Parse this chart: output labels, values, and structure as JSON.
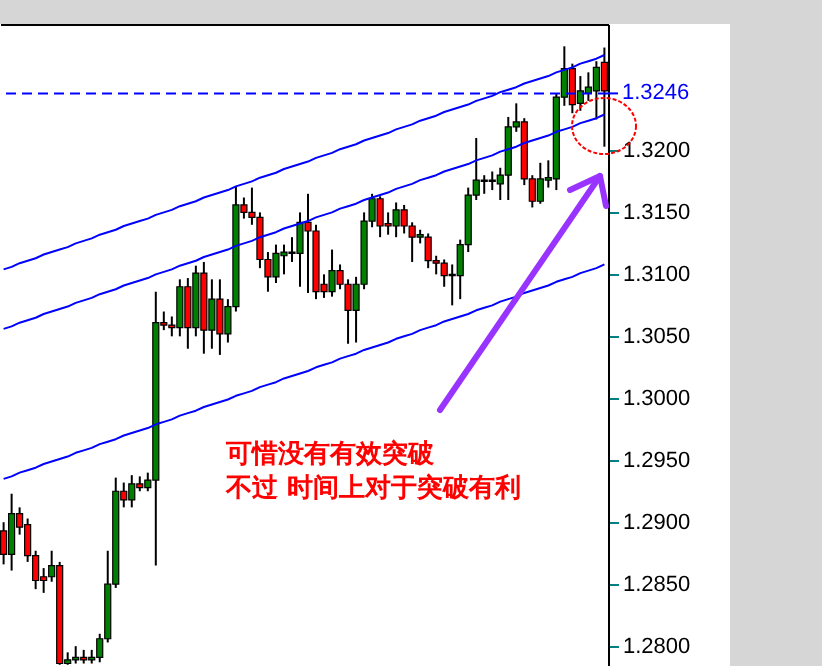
{
  "chart_data": {
    "type": "candlestick",
    "categories": [
      null,
      null,
      null,
      null,
      null,
      null,
      null,
      null,
      null,
      null,
      null,
      null,
      null,
      null,
      null,
      null,
      null,
      null,
      null,
      null,
      null,
      null,
      null,
      null,
      null,
      null,
      null,
      null,
      null,
      null,
      null,
      null,
      null,
      null,
      null,
      null,
      null,
      null,
      null,
      null,
      null,
      null,
      null,
      null,
      null,
      null,
      null,
      null,
      null,
      null,
      null,
      null,
      null,
      null,
      null,
      null,
      null,
      null,
      null,
      null,
      null,
      null,
      null,
      null,
      null,
      null,
      null,
      null,
      null,
      null,
      null,
      null,
      null,
      null,
      null,
      null
    ],
    "ohlc": [
      [
        1.2893,
        1.29,
        1.2866,
        1.2874
      ],
      [
        1.2874,
        1.2923,
        1.2861,
        1.2907
      ],
      [
        1.2907,
        1.2912,
        1.289,
        1.2896
      ],
      [
        1.2898,
        1.2903,
        1.2868,
        1.2873
      ],
      [
        1.2873,
        1.2877,
        1.2846,
        1.2853
      ],
      [
        1.2856,
        1.2863,
        1.2843,
        1.2853
      ],
      [
        1.2856,
        1.2877,
        1.2852,
        1.2865
      ],
      [
        1.2865,
        1.2868,
        1.2785,
        1.2786
      ],
      [
        1.2786,
        1.2795,
        1.2785,
        1.2789
      ],
      [
        1.2789,
        1.28,
        1.2786,
        1.2791
      ],
      [
        1.2791,
        1.2797,
        1.2786,
        1.2789
      ],
      [
        1.2789,
        1.2797,
        1.2786,
        1.2791
      ],
      [
        1.2791,
        1.281,
        1.2787,
        1.2806
      ],
      [
        1.2806,
        1.2877,
        1.2803,
        1.285
      ],
      [
        1.285,
        1.2936,
        1.2847,
        1.2925
      ],
      [
        1.2925,
        1.2932,
        1.2912,
        1.2918
      ],
      [
        1.2918,
        1.2938,
        1.2912,
        1.2931
      ],
      [
        1.2931,
        1.2937,
        1.2925,
        1.2928
      ],
      [
        1.2928,
        1.294,
        1.2925,
        1.2934
      ],
      [
        1.2934,
        1.3086,
        1.2865,
        1.3061
      ],
      [
        1.3061,
        1.307,
        1.3055,
        1.3059
      ],
      [
        1.3059,
        1.3066,
        1.305,
        1.3057
      ],
      [
        1.3057,
        1.3096,
        1.305,
        1.309
      ],
      [
        1.309,
        1.3097,
        1.304,
        1.3057
      ],
      [
        1.3057,
        1.3107,
        1.305,
        1.3101
      ],
      [
        1.3101,
        1.311,
        1.3036,
        1.3055
      ],
      [
        1.3055,
        1.3096,
        1.304,
        1.308
      ],
      [
        1.308,
        1.3096,
        1.3035,
        1.3052
      ],
      [
        1.3052,
        1.308,
        1.3045,
        1.3074
      ],
      [
        1.3074,
        1.3171,
        1.307,
        1.3156
      ],
      [
        1.3156,
        1.3162,
        1.3145,
        1.315
      ],
      [
        1.315,
        1.317,
        1.314,
        1.3146
      ],
      [
        1.3146,
        1.315,
        1.3105,
        1.3112
      ],
      [
        1.3112,
        1.3118,
        1.3086,
        1.3098
      ],
      [
        1.3098,
        1.3124,
        1.3093,
        1.3117
      ],
      [
        1.3115,
        1.3124,
        1.31,
        1.3118
      ],
      [
        1.3118,
        1.313,
        1.311,
        1.3117
      ],
      [
        1.3117,
        1.315,
        1.309,
        1.3142
      ],
      [
        1.3142,
        1.3165,
        1.3085,
        1.3135
      ],
      [
        1.3135,
        1.314,
        1.308,
        1.3086
      ],
      [
        1.3092,
        1.31,
        1.3081,
        1.3086
      ],
      [
        1.3086,
        1.312,
        1.3082,
        1.3103
      ],
      [
        1.3103,
        1.3108,
        1.3088,
        1.3092
      ],
      [
        1.3092,
        1.3096,
        1.3044,
        1.3071
      ],
      [
        1.3071,
        1.3098,
        1.3045,
        1.3092
      ],
      [
        1.3092,
        1.315,
        1.3088,
        1.3143
      ],
      [
        1.3143,
        1.3165,
        1.3138,
        1.3161
      ],
      [
        1.3161,
        1.3163,
        1.313,
        1.3139
      ],
      [
        1.3141,
        1.315,
        1.3132,
        1.3139
      ],
      [
        1.3139,
        1.3158,
        1.313,
        1.3152
      ],
      [
        1.3152,
        1.3156,
        1.3133,
        1.3139
      ],
      [
        1.3139,
        1.3142,
        1.311,
        1.313
      ],
      [
        1.313,
        1.3136,
        1.3125,
        1.3132
      ],
      [
        1.313,
        1.3133,
        1.3105,
        1.3111
      ],
      [
        1.3111,
        1.3115,
        1.31,
        1.3109
      ],
      [
        1.3109,
        1.3112,
        1.309,
        1.3099
      ],
      [
        1.31,
        1.3108,
        1.3075,
        1.3099
      ],
      [
        1.3099,
        1.3128,
        1.308,
        1.3124
      ],
      [
        1.3124,
        1.317,
        1.3118,
        1.3164
      ],
      [
        1.3164,
        1.321,
        1.316,
        1.3176
      ],
      [
        1.3176,
        1.318,
        1.3165,
        1.3175
      ],
      [
        1.3175,
        1.3183,
        1.3168,
        1.3176
      ],
      [
        1.3173,
        1.3186,
        1.316,
        1.318
      ],
      [
        1.318,
        1.3227,
        1.316,
        1.3219
      ],
      [
        1.3219,
        1.3238,
        1.3215,
        1.3223
      ],
      [
        1.3223,
        1.3226,
        1.3172,
        1.3177
      ],
      [
        1.3177,
        1.318,
        1.3154,
        1.3159
      ],
      [
        1.3159,
        1.319,
        1.3157,
        1.3177
      ],
      [
        1.3176,
        1.3192,
        1.317,
        1.3178
      ],
      [
        1.3177,
        1.3246,
        1.3168,
        1.3243
      ],
      [
        1.3243,
        1.3284,
        1.3236,
        1.3266
      ],
      [
        1.3266,
        1.327,
        1.323,
        1.3237
      ],
      [
        1.3238,
        1.326,
        1.3232,
        1.3248
      ],
      [
        1.3246,
        1.3263,
        1.324,
        1.3251
      ],
      [
        1.3248,
        1.3272,
        1.3225,
        1.3267
      ],
      [
        1.3271,
        1.3283,
        1.3203,
        1.3248
      ]
    ],
    "colors": [
      "#ff0000",
      "#008000",
      "#ff0000",
      "#ff0000",
      "#ff0000",
      "#ff0000",
      "#008000",
      "#ff0000",
      "#008000",
      "#008000",
      "#ff0000",
      "#008000",
      "#008000",
      "#008000",
      "#008000",
      "#ff0000",
      "#008000",
      "#ff0000",
      "#008000",
      "#008000",
      "#ff0000",
      "#ff0000",
      "#008000",
      "#ff0000",
      "#008000",
      "#ff0000",
      "#008000",
      "#ff0000",
      "#008000",
      "#008000",
      "#ff0000",
      "#ff0000",
      "#ff0000",
      "#ff0000",
      "#008000",
      "#008000",
      "#ff0000",
      "#008000",
      "#ff0000",
      "#ff0000",
      "#ff0000",
      "#008000",
      "#ff0000",
      "#ff0000",
      "#008000",
      "#008000",
      "#008000",
      "#ff0000",
      "#ff0000",
      "#008000",
      "#ff0000",
      "#ff0000",
      "#008000",
      "#ff0000",
      "#ff0000",
      "#ff0000",
      "#ff0000",
      "#008000",
      "#008000",
      "#008000",
      "#ff0000",
      "#008000",
      "#008000",
      "#008000",
      "#008000",
      "#ff0000",
      "#ff0000",
      "#008000",
      "#008000",
      "#008000",
      "#008000",
      "#ff0000",
      "#008000",
      "#008000",
      "#008000",
      "#ff0000"
    ],
    "series": [
      {
        "type": "line",
        "color": "#0000ff",
        "values": [
          1.3104,
          1.3106,
          1.3109,
          1.3111,
          1.3113,
          1.3116,
          1.3118,
          1.312,
          1.3122,
          1.3125,
          1.3127,
          1.3129,
          1.3132,
          1.3134,
          1.3136,
          1.3139,
          1.3141,
          1.3143,
          1.3145,
          1.3148,
          1.315,
          1.3152,
          1.3155,
          1.3157,
          1.3159,
          1.3162,
          1.3164,
          1.3166,
          1.3168,
          1.3171,
          1.3173,
          1.3175,
          1.3178,
          1.318,
          1.3182,
          1.3185,
          1.3187,
          1.3189,
          1.3191,
          1.3194,
          1.3196,
          1.3198,
          1.3201,
          1.3203,
          1.3205,
          1.3208,
          1.321,
          1.3212,
          1.3214,
          1.3217,
          1.3219,
          1.3221,
          1.3224,
          1.3226,
          1.3228,
          1.3231,
          1.3233,
          1.3235,
          1.3237,
          1.324,
          1.3242,
          1.3244,
          1.3247,
          1.3249,
          1.3251,
          1.3254,
          1.3256,
          1.3258,
          1.326,
          1.3263,
          1.3265,
          1.3267,
          1.327,
          1.3272,
          1.3274,
          1.3277
        ]
      },
      {
        "type": "line",
        "color": "#0000ff",
        "values": [
          1.3056,
          1.3058,
          1.3061,
          1.3063,
          1.3065,
          1.3068,
          1.307,
          1.3072,
          1.3074,
          1.3077,
          1.3079,
          1.3081,
          1.3084,
          1.3086,
          1.3088,
          1.3091,
          1.3093,
          1.3095,
          1.3097,
          1.31,
          1.3102,
          1.3104,
          1.3107,
          1.3109,
          1.3111,
          1.3114,
          1.3116,
          1.3118,
          1.312,
          1.3123,
          1.3125,
          1.3127,
          1.313,
          1.3132,
          1.3134,
          1.3137,
          1.3139,
          1.3141,
          1.3143,
          1.3146,
          1.3148,
          1.315,
          1.3153,
          1.3155,
          1.3157,
          1.316,
          1.3162,
          1.3164,
          1.3166,
          1.3169,
          1.3171,
          1.3173,
          1.3176,
          1.3178,
          1.318,
          1.3183,
          1.3185,
          1.3187,
          1.3189,
          1.3192,
          1.3194,
          1.3196,
          1.3199,
          1.3201,
          1.3203,
          1.3206,
          1.3208,
          1.321,
          1.3212,
          1.3215,
          1.3217,
          1.3219,
          1.3222,
          1.3224,
          1.3226,
          1.3229
        ]
      },
      {
        "type": "line",
        "color": "#0000ff",
        "values": [
          1.2935,
          1.2937,
          1.294,
          1.2942,
          1.2944,
          1.2947,
          1.2949,
          1.2951,
          1.2953,
          1.2956,
          1.2958,
          1.296,
          1.2963,
          1.2965,
          1.2967,
          1.297,
          1.2972,
          1.2974,
          1.2976,
          1.2979,
          1.2981,
          1.2983,
          1.2986,
          1.2988,
          1.299,
          1.2993,
          1.2995,
          1.2997,
          1.2999,
          1.3002,
          1.3004,
          1.3006,
          1.3009,
          1.3011,
          1.3013,
          1.3016,
          1.3018,
          1.302,
          1.3022,
          1.3025,
          1.3027,
          1.3029,
          1.3032,
          1.3034,
          1.3036,
          1.3039,
          1.3041,
          1.3043,
          1.3045,
          1.3048,
          1.305,
          1.3052,
          1.3055,
          1.3057,
          1.3059,
          1.3062,
          1.3064,
          1.3066,
          1.3068,
          1.3071,
          1.3073,
          1.3075,
          1.3078,
          1.308,
          1.3082,
          1.3085,
          1.3087,
          1.3089,
          1.3091,
          1.3094,
          1.3096,
          1.3098,
          1.3101,
          1.3103,
          1.3105,
          1.3108
        ]
      }
    ],
    "ref_lines": [
      {
        "axis": "y",
        "value": 1.3246,
        "label": "1.3246",
        "color": "#0000ff",
        "line_style": "dashed"
      }
    ],
    "annotations": [
      "可惜没有有效突破",
      "不过 时间上对于突破有利"
    ],
    "ylim": [
      1.2784,
      1.3302
    ],
    "yticks": [
      {
        "value": 1.28,
        "label": "1.2800"
      },
      {
        "value": 1.285,
        "label": "1.2850"
      },
      {
        "value": 1.29,
        "label": "1.2900"
      },
      {
        "value": 1.295,
        "label": "1.2950"
      },
      {
        "value": 1.3,
        "label": "1.3000"
      },
      {
        "value": 1.305,
        "label": "1.3050"
      },
      {
        "value": 1.31,
        "label": "1.3100"
      },
      {
        "value": 1.315,
        "label": "1.3150"
      },
      {
        "value": 1.32,
        "label": "1.3200"
      }
    ]
  }
}
